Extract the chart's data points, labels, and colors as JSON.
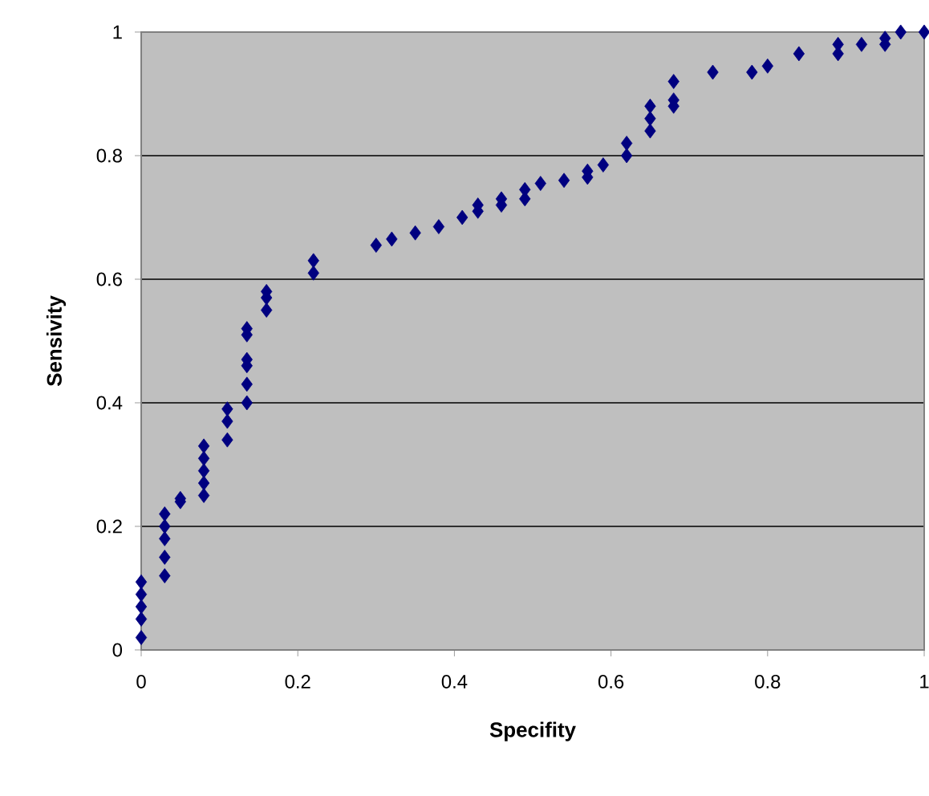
{
  "chart_data": {
    "type": "scatter",
    "xlabel": "Specifity",
    "ylabel": "Sensivity",
    "xlim": [
      0,
      1
    ],
    "ylim": [
      0,
      1
    ],
    "xticks": [
      0,
      0.2,
      0.4,
      0.6,
      0.8,
      1
    ],
    "yticks": [
      0,
      0.2,
      0.4,
      0.6,
      0.8,
      1
    ],
    "grid": "y",
    "marker": "diamond",
    "series": [
      {
        "color": "#000080",
        "x": [
          0,
          0,
          0,
          0,
          0,
          0.03,
          0.03,
          0.03,
          0.03,
          0.03,
          0.05,
          0.05,
          0.08,
          0.08,
          0.08,
          0.08,
          0.08,
          0.11,
          0.11,
          0.11,
          0.135,
          0.135,
          0.135,
          0.135,
          0.135,
          0.135,
          0.16,
          0.16,
          0.16,
          0.22,
          0.22,
          0.3,
          0.32,
          0.35,
          0.38,
          0.41,
          0.43,
          0.43,
          0.46,
          0.46,
          0.49,
          0.49,
          0.51,
          0.54,
          0.57,
          0.57,
          0.59,
          0.62,
          0.62,
          0.65,
          0.65,
          0.65,
          0.68,
          0.68,
          0.68,
          0.73,
          0.78,
          0.8,
          0.84,
          0.89,
          0.89,
          0.92,
          0.95,
          0.95,
          0.97,
          1
        ],
        "values": [
          0.02,
          0.05,
          0.07,
          0.09,
          0.11,
          0.12,
          0.15,
          0.18,
          0.2,
          0.22,
          0.24,
          0.245,
          0.25,
          0.27,
          0.29,
          0.31,
          0.33,
          0.34,
          0.37,
          0.39,
          0.4,
          0.43,
          0.46,
          0.47,
          0.51,
          0.52,
          0.55,
          0.57,
          0.58,
          0.61,
          0.63,
          0.655,
          0.665,
          0.675,
          0.685,
          0.7,
          0.71,
          0.72,
          0.72,
          0.73,
          0.73,
          0.745,
          0.755,
          0.76,
          0.765,
          0.775,
          0.785,
          0.8,
          0.82,
          0.84,
          0.86,
          0.88,
          0.88,
          0.89,
          0.92,
          0.935,
          0.935,
          0.945,
          0.965,
          0.965,
          0.98,
          0.98,
          0.98,
          0.99,
          1,
          1
        ]
      }
    ]
  }
}
